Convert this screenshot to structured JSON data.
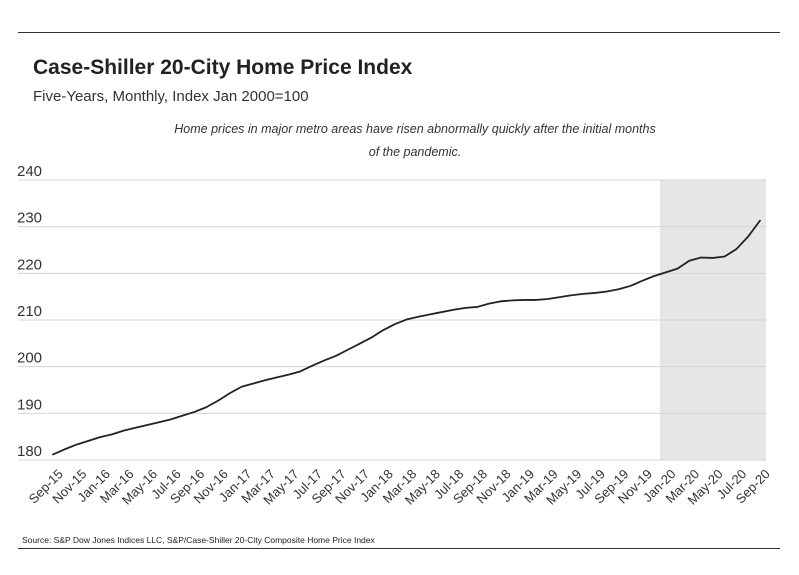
{
  "chart_data": {
    "type": "line",
    "title": "Case-Shiller 20-City Home Price Index",
    "subtitle": "Five-Years, Monthly, Index Jan 2000=100",
    "annotation_line1": "Home prices in major metro areas have risen abnormally quickly after the initial months",
    "annotation_line2": "of the pandemic.",
    "source": "Source:  S&P Dow Jones Indices LLC, S&P/Case-Shiller 20-City Composite Home Price Index",
    "ylim": [
      180,
      240
    ],
    "yticks": [
      "180",
      "190",
      "200",
      "210",
      "220",
      "230",
      "240"
    ],
    "grid": true,
    "shaded_region": {
      "from": "Feb-20",
      "to": "Sep-20",
      "color": "#e6e6e6"
    },
    "line_color": "#222222",
    "x_tick_labels": [
      "Sep-15",
      "Nov-15",
      "Jan-16",
      "Mar-16",
      "May-16",
      "Jul-16",
      "Sep-16",
      "Nov-16",
      "Jan-17",
      "Mar-17",
      "May-17",
      "Jul-17",
      "Sep-17",
      "Nov-17",
      "Jan-18",
      "Mar-18",
      "May-18",
      "Jul-18",
      "Sep-18",
      "Nov-18",
      "Jan-19",
      "Mar-19",
      "May-19",
      "Jul-19",
      "Sep-19",
      "Nov-19",
      "Jan-20",
      "Mar-20",
      "May-20",
      "Jul-20",
      "Sep-20"
    ],
    "x": [
      "Sep-15",
      "Oct-15",
      "Nov-15",
      "Dec-15",
      "Jan-16",
      "Feb-16",
      "Mar-16",
      "Apr-16",
      "May-16",
      "Jun-16",
      "Jul-16",
      "Aug-16",
      "Sep-16",
      "Oct-16",
      "Nov-16",
      "Dec-16",
      "Jan-17",
      "Feb-17",
      "Mar-17",
      "Apr-17",
      "May-17",
      "Jun-17",
      "Jul-17",
      "Aug-17",
      "Sep-17",
      "Oct-17",
      "Nov-17",
      "Dec-17",
      "Jan-18",
      "Feb-18",
      "Mar-18",
      "Apr-18",
      "May-18",
      "Jun-18",
      "Jul-18",
      "Aug-18",
      "Sep-18",
      "Oct-18",
      "Nov-18",
      "Dec-18",
      "Jan-19",
      "Feb-19",
      "Mar-19",
      "Apr-19",
      "May-19",
      "Jun-19",
      "Jul-19",
      "Aug-19",
      "Sep-19",
      "Oct-19",
      "Nov-19",
      "Dec-19",
      "Jan-20",
      "Feb-20",
      "Mar-20",
      "Apr-20",
      "May-20",
      "Jun-20",
      "Jul-20",
      "Aug-20",
      "Sep-20"
    ],
    "series": [
      {
        "values": [
          181.2,
          182.3,
          183.3,
          184.1,
          184.9,
          185.5,
          186.3,
          186.9,
          187.5,
          188.1,
          188.7,
          189.5,
          190.3,
          191.3,
          192.7,
          194.3,
          195.7,
          196.4,
          197.1,
          197.7,
          198.3,
          199.0,
          200.2,
          201.3,
          202.3,
          203.6,
          204.9,
          206.2,
          207.8,
          209.1,
          210.1,
          210.7,
          211.2,
          211.7,
          212.2,
          212.6,
          212.8,
          213.5,
          214.0,
          214.2,
          214.3,
          214.3,
          214.5,
          214.9,
          215.3,
          215.6,
          215.8,
          216.1,
          216.6,
          217.3,
          218.4,
          219.4,
          220.2,
          221.0,
          222.7,
          223.4,
          223.3,
          223.6,
          225.2,
          227.9,
          231.3
        ]
      }
    ]
  }
}
